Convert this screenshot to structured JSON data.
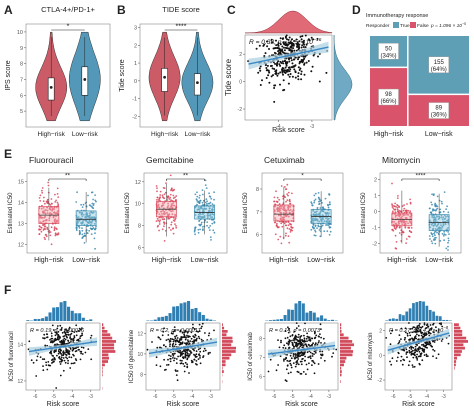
{
  "colors": {
    "high": "#d9475a",
    "low": "#3b8bb0",
    "high_light": "#f1a9b0",
    "low_light": "#8fc6da",
    "violin_high": "#c8525e",
    "violin_low": "#4a92b5",
    "mosaic_true": "#5f9fb5",
    "mosaic_false": "#d9536a",
    "hist": "#2f7fb3",
    "fit": "#3a88c8",
    "ci": "#a9cfe0"
  },
  "panel_letters": [
    "A",
    "B",
    "C",
    "D",
    "E",
    "F"
  ],
  "chart_data": [
    {
      "id": "A",
      "type": "violin",
      "title": "CTLA-4+/PD-1+",
      "ylabel": "IPS score",
      "categories": [
        "High−risk",
        "Low−risk"
      ],
      "yticks": [
        "5",
        "6",
        "7",
        "8",
        "9",
        "10"
      ],
      "ylim": [
        4,
        10.5
      ],
      "medians": [
        6.5,
        7.0
      ],
      "q1": [
        5.7,
        6.0
      ],
      "q3": [
        7.1,
        7.8
      ],
      "significance": "*"
    },
    {
      "id": "B",
      "type": "violin",
      "title": "TIDE score",
      "ylabel": "Tide score",
      "categories": [
        "High−risk",
        "Low−risk"
      ],
      "yticks": [
        "-2",
        "-1",
        "0",
        "1",
        "2",
        "3"
      ],
      "ylim": [
        -2.6,
        3.2
      ],
      "medians": [
        0.2,
        -0.1
      ],
      "q1": [
        -0.6,
        -0.8
      ],
      "q3": [
        0.7,
        0.4
      ],
      "significance": "****"
    },
    {
      "id": "C",
      "type": "scatter",
      "xlabel": "Risk score",
      "ylabel": "Tide score",
      "xticks": [
        "-4",
        "-3"
      ],
      "yticks": [
        "-2",
        "0",
        "2"
      ],
      "xlim": [
        -5,
        -2.4
      ],
      "ylim": [
        -2.8,
        3.4
      ],
      "annotation": {
        "R": "R = 0.38, ",
        "p": "p = 1.5 × 10",
        "exp": "−16"
      },
      "fit": {
        "slope": 0.52,
        "intercept": 1.9
      }
    },
    {
      "id": "D",
      "type": "mosaic",
      "legend_title": "Immunotherapy response",
      "legend_label": "Responder",
      "legend_items": [
        "True",
        "False"
      ],
      "legend_p": "p = 1.096 × 10",
      "legend_p_exp": "−5",
      "categories": [
        "High−risk",
        "Low−risk"
      ],
      "true_counts": [
        "50",
        "155"
      ],
      "true_pct": [
        "(34%)",
        "(64%)"
      ],
      "false_counts": [
        "98",
        "89"
      ],
      "false_pct": [
        "(66%)",
        "(36%)"
      ],
      "true_fraction": [
        0.34,
        0.64
      ],
      "column_fraction": [
        0.38,
        0.62
      ]
    },
    {
      "id": "E1",
      "type": "box",
      "title": "Fluorouracil",
      "ylabel": "Estimated IC50",
      "categories": [
        "High−risk",
        "Low−risk"
      ],
      "yticks": [
        "12",
        "13",
        "14",
        "15"
      ],
      "ylim": [
        11.6,
        15.4
      ],
      "medians": [
        13.4,
        13.2
      ],
      "q1": [
        13.0,
        12.9
      ],
      "q3": [
        13.8,
        13.6
      ],
      "whisk": [
        [
          12.2,
          14.7
        ],
        [
          12.1,
          14.5
        ]
      ],
      "significance": "**"
    },
    {
      "id": "E2",
      "type": "box",
      "title": "Gemcitabine",
      "ylabel": "Estimated IC50",
      "categories": [
        "High−risk",
        "Low−risk"
      ],
      "yticks": [
        "6",
        "8",
        "10",
        "12"
      ],
      "ylim": [
        5.5,
        12.8
      ],
      "medians": [
        9.5,
        9.2
      ],
      "q1": [
        8.8,
        8.6
      ],
      "q3": [
        10.2,
        9.8
      ],
      "whisk": [
        [
          7.0,
          11.8
        ],
        [
          7.2,
          11.2
        ]
      ],
      "significance": "**"
    },
    {
      "id": "E3",
      "type": "box",
      "title": "Cetuximab",
      "ylabel": "Estimated IC50",
      "categories": [
        "High−risk",
        "Low−risk"
      ],
      "yticks": [
        "6",
        "7",
        "8"
      ],
      "ylim": [
        5.2,
        8.7
      ],
      "medians": [
        6.9,
        6.8
      ],
      "q1": [
        6.6,
        6.5
      ],
      "q3": [
        7.3,
        7.1
      ],
      "whisk": [
        [
          5.8,
          8.1
        ],
        [
          5.9,
          7.9
        ]
      ],
      "significance": "*"
    },
    {
      "id": "E4",
      "type": "box",
      "title": "Mitomycin",
      "ylabel": "Estimated IC50",
      "categories": [
        "High−risk",
        "Low−risk"
      ],
      "yticks": [
        "-2",
        "-1",
        "0",
        "1",
        "2"
      ],
      "ylim": [
        -2.6,
        2.4
      ],
      "medians": [
        -0.5,
        -0.7
      ],
      "q1": [
        -0.9,
        -1.2
      ],
      "q3": [
        -0.1,
        -0.2
      ],
      "whisk": [
        [
          -2.0,
          1.3
        ],
        [
          -2.2,
          1.1
        ]
      ],
      "significance": "****"
    },
    {
      "id": "F1",
      "type": "scatter",
      "xlabel": "Risk score",
      "ylabel": "IC50 of fluorouracil",
      "xticks": [
        "-6",
        "-5",
        "-4",
        "-3"
      ],
      "yticks": [
        "12",
        "14"
      ],
      "xlim": [
        -6.5,
        -2.5
      ],
      "ylim": [
        11.5,
        15.2
      ],
      "annotation": {
        "R": "R = 0.19, ",
        "p": "p = 0.00016",
        "exp": ""
      },
      "fit": {
        "slope": 0.15,
        "intercept": 13.9
      }
    },
    {
      "id": "F2",
      "type": "scatter",
      "xlabel": "Risk score",
      "ylabel": "IC50 of gemcitabine",
      "xticks": [
        "-6",
        "-5",
        "-4",
        "-3"
      ],
      "yticks": [
        "8",
        "10",
        "12"
      ],
      "xlim": [
        -6.5,
        -2.5
      ],
      "ylim": [
        6.5,
        13
      ],
      "annotation": {
        "R": "R = 0.2, ",
        "p": "p = 0.00011",
        "exp": ""
      },
      "fit": {
        "slope": 0.3,
        "intercept": 10.6
      }
    },
    {
      "id": "F3",
      "type": "scatter",
      "xlabel": "Risk score",
      "ylabel": "IC50 of cetuximab",
      "xticks": [
        "-6",
        "-5",
        "-4",
        "-3"
      ],
      "yticks": [
        "6",
        "7",
        "8"
      ],
      "xlim": [
        -6.5,
        -2.5
      ],
      "ylim": [
        5.3,
        8.8
      ],
      "annotation": {
        "R": "R = 0.14, ",
        "p": "p = 0.0073",
        "exp": ""
      },
      "fit": {
        "slope": 0.12,
        "intercept": 7.4
      }
    },
    {
      "id": "F4",
      "type": "scatter",
      "xlabel": "Risk score",
      "ylabel": "IC50 of mitomycin",
      "xticks": [
        "-6",
        "-5",
        "-4",
        "-3"
      ],
      "yticks": [
        "-2",
        "0",
        "2"
      ],
      "xlim": [
        -6.5,
        -2.5
      ],
      "ylim": [
        -2.8,
        2.6
      ],
      "annotation": {
        "R": "R = 0.27, ",
        "p": "p = 4.7 × 10",
        "exp": "−8"
      },
      "fit": {
        "slope": 0.38,
        "intercept": 1.1
      }
    }
  ]
}
